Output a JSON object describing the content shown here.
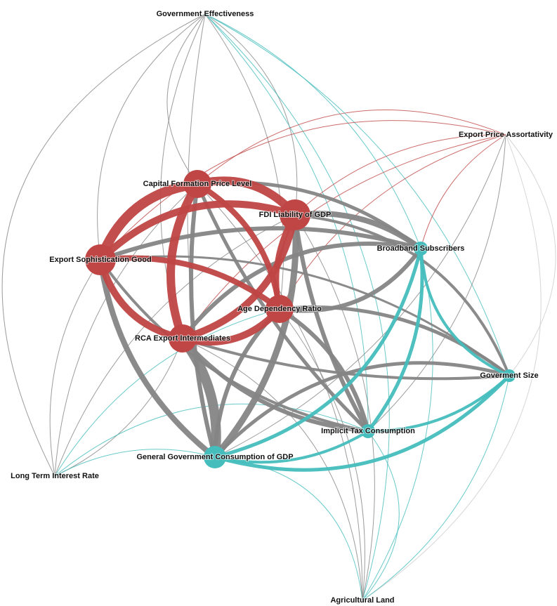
{
  "nodes": [
    {
      "label": "Government Effectiveness"
    },
    {
      "label": "Export Price Assortativity"
    },
    {
      "label": "Capital Formation Price Level"
    },
    {
      "label": "FDI Liability of GDP"
    },
    {
      "label": "Export Sophistication Good"
    },
    {
      "label": "Broadband Subscribers"
    },
    {
      "label": "Age Dependency Ratio"
    },
    {
      "label": "RCA Export Intermediates"
    },
    {
      "label": "Goverment Size"
    },
    {
      "label": "Implicit Tax Consumption"
    },
    {
      "label": "General Government Consumption of GDP"
    },
    {
      "label": "Long Term Interest Rate"
    },
    {
      "label": "Agricultural Land"
    }
  ]
}
